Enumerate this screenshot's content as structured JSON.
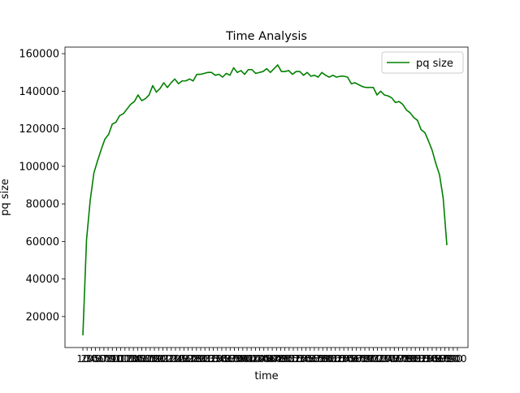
{
  "chart_data": {
    "type": "line",
    "title": "Time Analysis",
    "xlabel": "time",
    "ylabel": "pq size",
    "ylim": [
      3500,
      163500
    ],
    "yticks": [
      20000,
      40000,
      60000,
      80000,
      100000,
      120000,
      140000,
      160000
    ],
    "ytick_labels": [
      "20000",
      "40000",
      "60000",
      "80000",
      "100000",
      "120000",
      "140000",
      "160000"
    ],
    "xtick_labels_note": "x tick labels are crowded and overlap illegibly",
    "xtick_labels": [
      "10",
      "20",
      "30",
      "40",
      "50",
      "60",
      "70",
      "80",
      "90",
      "100",
      "110",
      "120",
      "130",
      "140",
      "150",
      "160",
      "170",
      "180",
      "190",
      "200",
      "210",
      "220",
      "230",
      "240",
      "250",
      "260",
      "270",
      "280",
      "290",
      "300",
      "310",
      "320",
      "330",
      "340",
      "350",
      "360",
      "370",
      "380",
      "390",
      "400",
      "410",
      "420",
      "430",
      "440",
      "450",
      "460",
      "470",
      "480",
      "490",
      "500",
      "510",
      "520",
      "530",
      "540",
      "550",
      "560",
      "570",
      "580",
      "590",
      "600",
      "610",
      "620",
      "630",
      "640",
      "650",
      "660",
      "670",
      "680",
      "690",
      "700",
      "710",
      "720",
      "730",
      "740",
      "750",
      "760",
      "770",
      "780",
      "790",
      "800",
      "810",
      "820",
      "830",
      "840",
      "850",
      "860",
      "870",
      "880",
      "890",
      "900"
    ],
    "grid": false,
    "legend": {
      "position": "upper right",
      "entries": [
        "pq size"
      ]
    },
    "series": [
      {
        "name": "pq size",
        "color": "#008000",
        "values": [
          10000,
          61000,
          82000,
          96500,
          103000,
          109000,
          114500,
          117000,
          122500,
          123500,
          127000,
          128000,
          130500,
          133000,
          134500,
          138000,
          135000,
          136000,
          138000,
          143000,
          139500,
          141500,
          144500,
          142000,
          144500,
          146500,
          144000,
          145500,
          145500,
          146500,
          145500,
          149000,
          149000,
          149500,
          150000,
          150000,
          148500,
          149000,
          147500,
          149500,
          148500,
          152500,
          150000,
          151000,
          149000,
          151500,
          151500,
          149500,
          150000,
          150500,
          152000,
          150000,
          152000,
          154000,
          150500,
          150500,
          151000,
          149000,
          150500,
          150500,
          148500,
          150000,
          148000,
          148500,
          147500,
          150000,
          148500,
          147500,
          148500,
          147500,
          148000,
          148000,
          147500,
          144000,
          144500,
          143500,
          142500,
          142000,
          142000,
          142000,
          138000,
          140000,
          138000,
          137500,
          136500,
          134000,
          134500,
          133000,
          130000,
          128500,
          126000,
          124500,
          119500,
          118000,
          113500,
          108500,
          101500,
          95500,
          83000,
          58000
        ]
      }
    ]
  }
}
